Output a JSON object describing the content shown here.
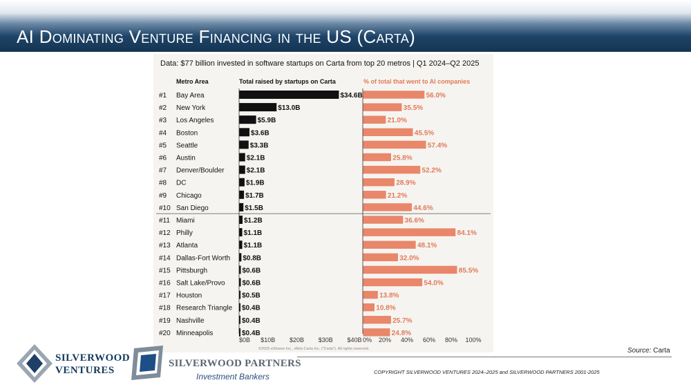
{
  "slide": {
    "title_prefix": "AI D",
    "title_rest": "ominating Venture Financing in the US (Carta)",
    "source_label": "Source:",
    "source_value": "Carta",
    "copyright": "COPYRIGHT SILVERWOOD VENTURES 2024–2025 and SILVERWOOD PARTNERS 2001-2025"
  },
  "logos": {
    "ventures_line1": "SILVERWOOD",
    "ventures_line2": "VENTURES",
    "partners_line1": "SILVERWOOD PARTNERS",
    "partners_line2": "Investment Bankers"
  },
  "colors": {
    "title_bg": "#1e4468",
    "bar_total": "#111111",
    "bar_ai": "#e8876a",
    "ai_label": "#e07a5a",
    "chart_bg": "#f6f4f0"
  },
  "chart_data": {
    "type": "bar",
    "title": "Data: $77 billion invested in software startups on Carta from top 20 metros | Q1 2024–Q2 2025",
    "column_headers": {
      "metro": "Metro Area",
      "total": "Total raised by startups on Carta",
      "ai": "% of total that went to AI companies"
    },
    "ranks": [
      "#1",
      "#2",
      "#3",
      "#4",
      "#5",
      "#6",
      "#7",
      "#8",
      "#9",
      "#10",
      "#11",
      "#12",
      "#13",
      "#14",
      "#15",
      "#16",
      "#17",
      "#18",
      "#19",
      "#20"
    ],
    "categories": [
      "Bay Area",
      "New York",
      "Los Angeles",
      "Boston",
      "Seattle",
      "Austin",
      "Denver/Boulder",
      "DC",
      "Chicago",
      "San Diego",
      "Miami",
      "Philly",
      "Atlanta",
      "Dallas-Fort Worth",
      "Pittsburgh",
      "Salt Lake/Provo",
      "Houston",
      "Research Triangle",
      "Nashville",
      "Minneapolis"
    ],
    "series": [
      {
        "name": "Total raised by startups on Carta",
        "values": [
          34.6,
          13.0,
          5.9,
          3.6,
          3.3,
          2.1,
          2.1,
          1.9,
          1.7,
          1.5,
          1.2,
          1.1,
          1.1,
          0.8,
          0.6,
          0.6,
          0.5,
          0.4,
          0.4,
          0.4
        ],
        "labels": [
          "$34.6B",
          "$13.0B",
          "$5.9B",
          "$3.6B",
          "$3.3B",
          "$2.1B",
          "$2.1B",
          "$1.9B",
          "$1.7B",
          "$1.5B",
          "$1.2B",
          "$1.1B",
          "$1.1B",
          "$0.8B",
          "$0.6B",
          "$0.6B",
          "$0.5B",
          "$0.4B",
          "$0.4B",
          "$0.4B"
        ],
        "xlim": [
          0,
          40
        ],
        "ticks": [
          "$0B",
          "$10B",
          "$20B",
          "$30B",
          "$40B"
        ]
      },
      {
        "name": "% of total that went to AI companies",
        "values": [
          56.0,
          35.5,
          21.0,
          45.5,
          57.4,
          25.8,
          52.2,
          28.9,
          21.2,
          44.6,
          36.6,
          84.1,
          48.1,
          32.0,
          85.5,
          54.0,
          13.8,
          10.8,
          25.7,
          24.8
        ],
        "labels": [
          "56.0%",
          "35.5%",
          "21.0%",
          "45.5%",
          "57.4%",
          "25.8%",
          "52.2%",
          "28.9%",
          "21.2%",
          "44.6%",
          "36.6%",
          "84.1%",
          "48.1%",
          "32.0%",
          "85.5%",
          "54.0%",
          "13.8%",
          "10.8%",
          "25.7%",
          "24.8%"
        ],
        "xlim": [
          0,
          100
        ],
        "ticks": [
          "0%",
          "20%",
          "40%",
          "60%",
          "80%",
          "100%"
        ]
      }
    ],
    "footnote": "©2025 eShares Inc., d/b/a Carta Inc. (\"Carta\"). All rights reserved."
  }
}
